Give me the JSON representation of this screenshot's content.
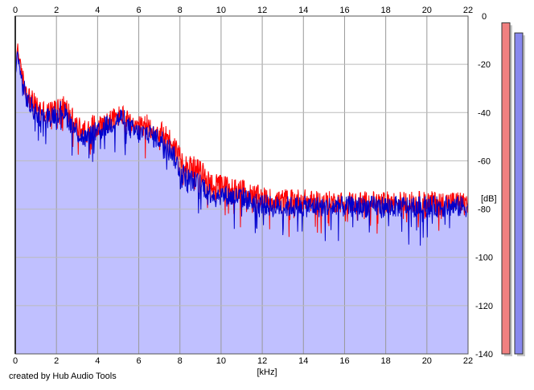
{
  "credit": "created by Hub Audio Tools",
  "chart_data": {
    "type": "area",
    "xlabel": "[kHz]",
    "ylabel": "[dB]",
    "xlim": [
      0,
      22
    ],
    "ylim": [
      -140,
      0
    ],
    "x_ticks": [
      0,
      2,
      4,
      6,
      8,
      10,
      12,
      14,
      16,
      18,
      20,
      22
    ],
    "y_ticks": [
      0,
      -20,
      -40,
      -60,
      -80,
      -100,
      -120,
      -140
    ],
    "grid": true,
    "series": [
      {
        "color": "#ff0000",
        "fill": "#f08080",
        "x": [
          0,
          0.1,
          0.2,
          0.3,
          0.5,
          0.7,
          1.0,
          1.3,
          1.6,
          2.0,
          2.3,
          2.6,
          2.9,
          3.2,
          3.5,
          3.8,
          4.0,
          4.3,
          4.6,
          4.9,
          5.2,
          5.5,
          5.8,
          6.1,
          6.4,
          6.7,
          7.0,
          7.3,
          7.6,
          7.9,
          8.2,
          8.5,
          8.8,
          9.1,
          9.4,
          9.7,
          10.0,
          10.5,
          11.0,
          11.5,
          12.0,
          12.5,
          13.0,
          13.5,
          14.0,
          14.5,
          15.0,
          15.5,
          16.0,
          16.5,
          17.0,
          17.5,
          18.0,
          18.5,
          19.0,
          19.5,
          20.0,
          20.5,
          21.0,
          21.5,
          22.0
        ],
        "y": [
          -25,
          -12,
          -18,
          -24,
          -30,
          -34,
          -37,
          -39,
          -40,
          -38,
          -36,
          -40,
          -44,
          -47,
          -48,
          -45,
          -46,
          -44,
          -43,
          -42,
          -41,
          -44,
          -46,
          -46,
          -45,
          -47,
          -48,
          -49,
          -52,
          -56,
          -60,
          -62,
          -63,
          -65,
          -68,
          -70,
          -70,
          -71,
          -72,
          -74,
          -75,
          -76,
          -76,
          -76,
          -76,
          -77,
          -77,
          -77,
          -77,
          -77,
          -77,
          -77,
          -77,
          -77,
          -77,
          -77,
          -77,
          -77,
          -77,
          -77,
          -77
        ]
      },
      {
        "color": "#0000cc",
        "fill": "#c0c0ff",
        "x": [
          0,
          0.1,
          0.2,
          0.3,
          0.5,
          0.7,
          1.0,
          1.3,
          1.6,
          2.0,
          2.3,
          2.6,
          2.9,
          3.2,
          3.5,
          3.8,
          4.0,
          4.3,
          4.6,
          4.9,
          5.2,
          5.5,
          5.8,
          6.1,
          6.4,
          6.7,
          7.0,
          7.3,
          7.6,
          7.9,
          8.2,
          8.5,
          8.8,
          9.1,
          9.4,
          9.7,
          10.0,
          10.5,
          11.0,
          11.5,
          12.0,
          12.5,
          13.0,
          13.5,
          14.0,
          14.5,
          15.0,
          15.5,
          16.0,
          16.5,
          17.0,
          17.5,
          18.0,
          18.5,
          19.0,
          19.5,
          20.0,
          20.5,
          21.0,
          21.5,
          22.0
        ],
        "y": [
          -28,
          -15,
          -20,
          -27,
          -33,
          -37,
          -40,
          -42,
          -42,
          -40,
          -39,
          -43,
          -47,
          -50,
          -51,
          -48,
          -49,
          -46,
          -45,
          -43,
          -42,
          -46,
          -48,
          -49,
          -48,
          -50,
          -51,
          -52,
          -56,
          -62,
          -66,
          -68,
          -69,
          -70,
          -73,
          -74,
          -74,
          -75,
          -75,
          -77,
          -78,
          -79,
          -79,
          -79,
          -79,
          -79,
          -79,
          -79,
          -79,
          -79,
          -79,
          -79,
          -79,
          -79,
          -79,
          -79,
          -79,
          -79,
          -79,
          -79,
          -79
        ]
      }
    ],
    "level_meters": [
      {
        "color": "#f08080",
        "level": 0.98
      },
      {
        "color": "#8888ee",
        "level": 0.95
      }
    ]
  }
}
